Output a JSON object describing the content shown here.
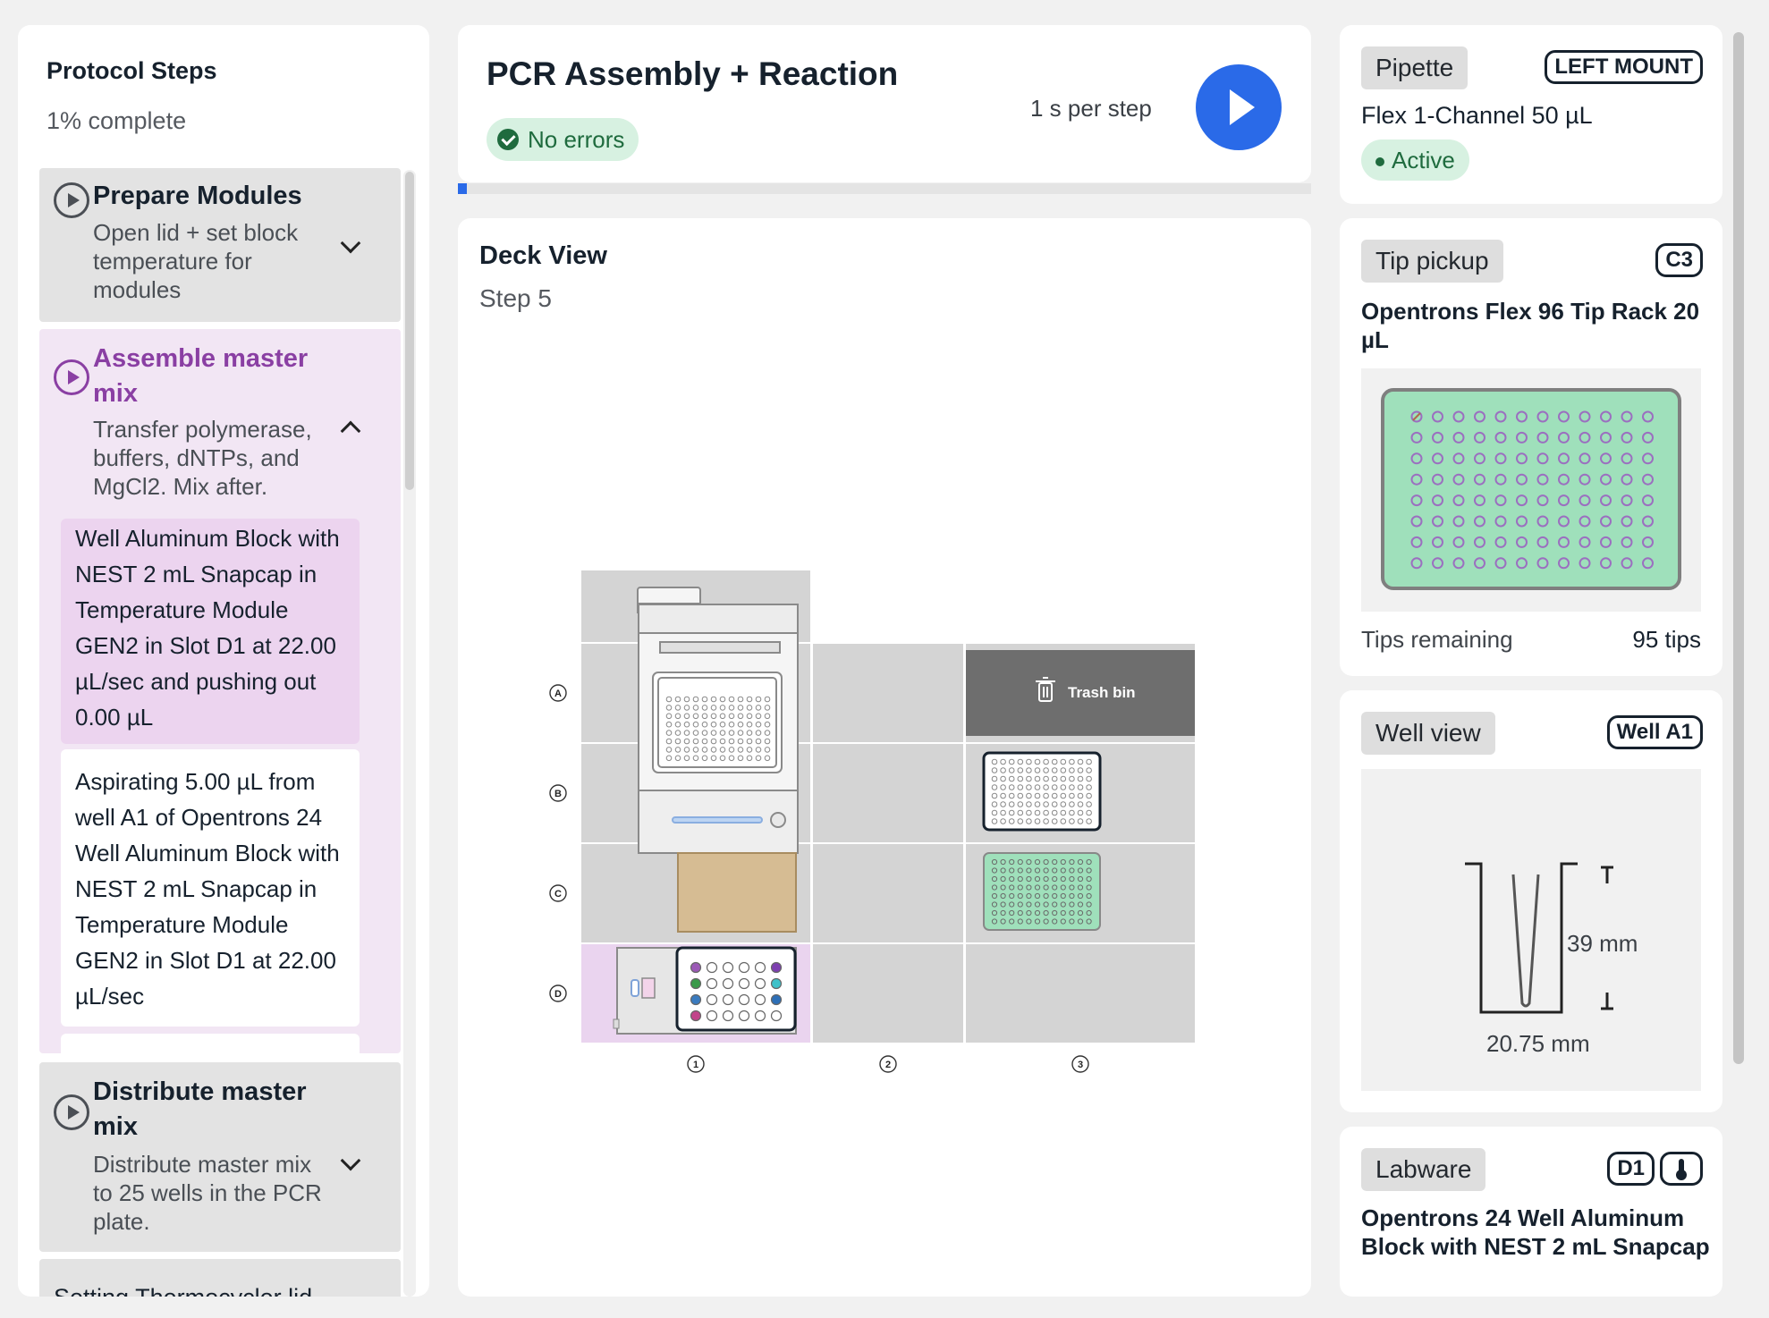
{
  "steps_panel": {
    "title": "Protocol Steps",
    "progress": "1% complete",
    "steps": [
      {
        "title": "Prepare Modules",
        "desc": "Open lid + set block temperature for modules"
      },
      {
        "title": "Assemble master mix",
        "desc": "Transfer polymerase, buffers, dNTPs, and MgCl2. Mix after."
      },
      {
        "title": "Distribute master mix",
        "desc": "Distribute master mix to 25 wells in the PCR plate."
      }
    ],
    "substeps": [
      "Well Aluminum Block with NEST 2 mL Snapcap in Temperature Module GEN2 in Slot D1 at 22.00 µL/sec and pushing out 0.00 µL",
      "Aspirating 5.00 µL from well A1 of Opentrons 24 Well Aluminum Block with NEST 2 mL Snapcap in Temperature Module GEN2 in Slot D1 at 22.00 µL/sec"
    ],
    "next_step_partial": "Setting Thermocycler lid"
  },
  "run": {
    "title": "PCR Assembly + Reaction",
    "status": "No errors",
    "speed": "1 s per step",
    "progress_percent": 1
  },
  "deck": {
    "title": "Deck View",
    "step": "Step 5",
    "rows": [
      "A",
      "B",
      "C",
      "D"
    ],
    "columns": [
      "1",
      "2",
      "3"
    ],
    "trash_label": "Trash bin"
  },
  "pipette": {
    "chip": "Pipette",
    "mount": "LEFT MOUNT",
    "name": "Flex 1-Channel 50 µL",
    "status": "Active"
  },
  "tip_pickup": {
    "chip": "Tip pickup",
    "slot": "C3",
    "labware": "Opentrons Flex 96 Tip Rack 20 µL",
    "remaining_label": "Tips remaining",
    "remaining_value": "95 tips"
  },
  "well_view": {
    "chip": "Well view",
    "well": "Well A1",
    "depth": "39 mm",
    "diameter": "20.75 mm"
  },
  "labware": {
    "chip": "Labware",
    "slot": "D1",
    "name": "Opentrons 24 Well Aluminum Block with NEST 2 mL Snapcap"
  },
  "colors": {
    "accent": "#2a6ae8",
    "purple": "#8a3fa3",
    "tip_green": "#9fe0bb",
    "ok_green": "#1f6b3e"
  }
}
